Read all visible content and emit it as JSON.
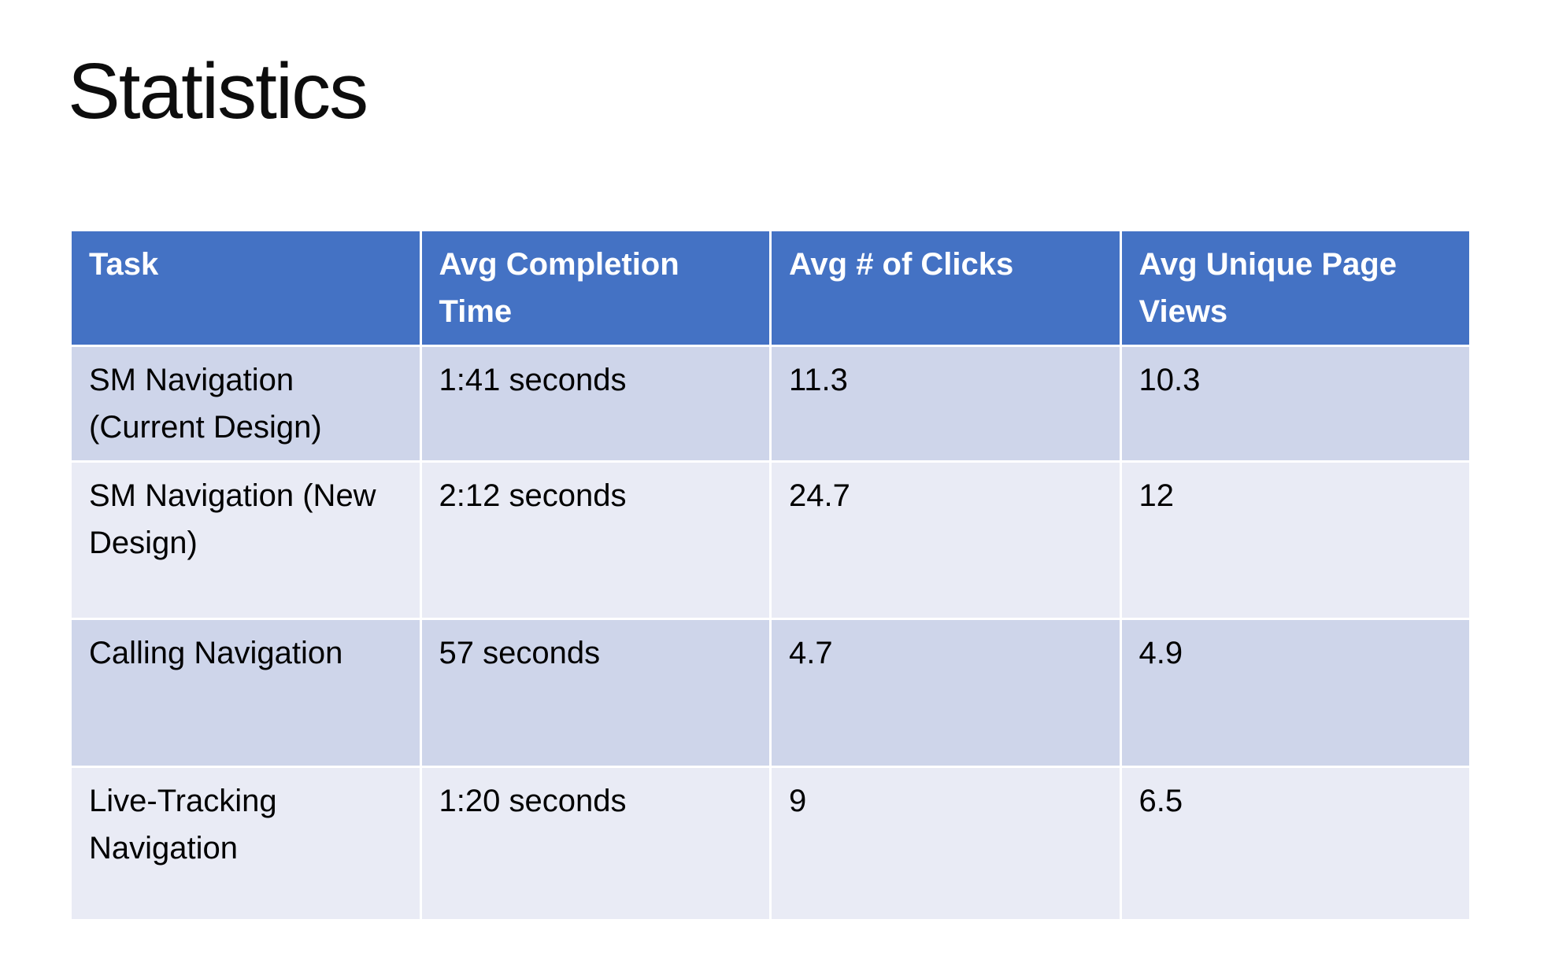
{
  "slide": {
    "title": "Statistics"
  },
  "chart_data": {
    "type": "table",
    "title": "Statistics",
    "columns": [
      "Task",
      "Avg Completion Time",
      "Avg # of Clicks",
      "Avg Unique Page Views"
    ],
    "rows": [
      [
        "SM Navigation (Current Design)",
        "1:41 seconds",
        11.3,
        10.3
      ],
      [
        "SM Navigation (New Design)",
        "2:12 seconds",
        24.7,
        12
      ],
      [
        "Calling Navigation",
        "57 seconds",
        4.7,
        4.9
      ],
      [
        "Live-Tracking Navigation",
        "1:20 seconds",
        9,
        6.5
      ]
    ]
  },
  "colors": {
    "slide_bg": "#FFFFFF",
    "header_bg": "#4472C4",
    "header_text": "#FFFFFF",
    "band_dark": "#CED5EA",
    "band_light": "#E9EBF5",
    "body_text": "#000000",
    "grid_line": "#FFFFFF"
  }
}
